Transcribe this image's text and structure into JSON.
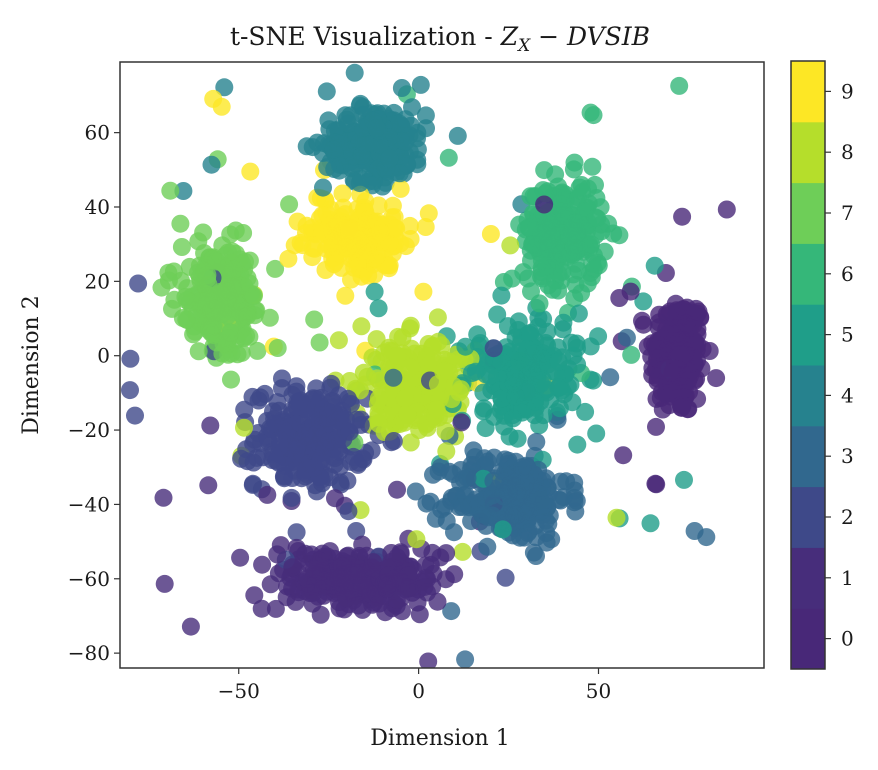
{
  "chart_data": {
    "type": "scatter",
    "title": "t-SNE Visualization - ",
    "title_math": "Z",
    "title_math_sub": "X",
    "title_math_rest": " − DVSIB",
    "xlabel": "Dimension 1",
    "ylabel": "Dimension 2",
    "xlim": [
      -83,
      96
    ],
    "ylim": [
      -84,
      79
    ],
    "xticks": [
      -50,
      0,
      50
    ],
    "xtick_labels": [
      "−50",
      "0",
      "50"
    ],
    "yticks": [
      -80,
      -60,
      -40,
      -20,
      0,
      20,
      40,
      60
    ],
    "ytick_labels": [
      "−80",
      "−60",
      "−40",
      "−20",
      "0",
      "20",
      "40",
      "60"
    ],
    "grid": false,
    "marker_alpha": 0.8,
    "colorbar": {
      "ticks": [
        0,
        1,
        2,
        3,
        4,
        5,
        6,
        7,
        8,
        9
      ],
      "tick_labels": [
        "0",
        "1",
        "2",
        "3",
        "4",
        "5",
        "6",
        "7",
        "8",
        "9"
      ],
      "colors": [
        "#482878",
        "#472d7b",
        "#3e4989",
        "#31688e",
        "#26828e",
        "#1f9e89",
        "#35b779",
        "#6ece58",
        "#b5de2b",
        "#fde725"
      ]
    },
    "clusters": [
      {
        "label": 0,
        "center": [
          72,
          0
        ],
        "spread": [
          7,
          15
        ],
        "count": 220
      },
      {
        "label": 1,
        "center": [
          -18,
          -60
        ],
        "spread": [
          20,
          7
        ],
        "count": 280
      },
      {
        "label": 2,
        "center": [
          -30,
          -22
        ],
        "spread": [
          14,
          12
        ],
        "count": 260
      },
      {
        "label": 3,
        "center": [
          25,
          -38
        ],
        "spread": [
          15,
          11
        ],
        "count": 240
      },
      {
        "label": 4,
        "center": [
          -12,
          57
        ],
        "spread": [
          13,
          9
        ],
        "count": 220
      },
      {
        "label": 5,
        "center": [
          30,
          -5
        ],
        "spread": [
          14,
          13
        ],
        "count": 220
      },
      {
        "label": 6,
        "center": [
          40,
          33
        ],
        "spread": [
          10,
          13
        ],
        "count": 220
      },
      {
        "label": 7,
        "center": [
          -55,
          15
        ],
        "spread": [
          10,
          13
        ],
        "count": 230
      },
      {
        "label": 8,
        "center": [
          0,
          -8
        ],
        "spread": [
          12,
          12
        ],
        "count": 230
      },
      {
        "label": 9,
        "center": [
          -18,
          32
        ],
        "spread": [
          13,
          9
        ],
        "count": 220
      }
    ]
  }
}
